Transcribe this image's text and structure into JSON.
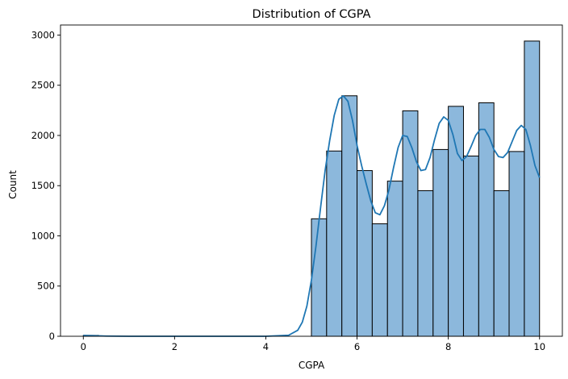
{
  "chart_data": {
    "type": "bar",
    "subtype": "histogram-with-kde",
    "title": "Distribution of CGPA",
    "xlabel": "CGPA",
    "ylabel": "Count",
    "xlim": [
      -0.5,
      10.5
    ],
    "ylim": [
      0,
      3100
    ],
    "xticks": [
      0,
      2,
      4,
      6,
      8,
      10
    ],
    "yticks": [
      0,
      500,
      1000,
      1500,
      2000,
      2500,
      3000
    ],
    "grid": false,
    "legend": "none",
    "bar_fill": "#8cb8dc",
    "bar_edge": "#000000",
    "kde_color": "#1f77b4",
    "bins": [
      {
        "x0": 0.0,
        "x1": 0.333,
        "count": 9
      },
      {
        "x0": 5.0,
        "x1": 5.333,
        "count": 1170
      },
      {
        "x0": 5.333,
        "x1": 5.667,
        "count": 1845
      },
      {
        "x0": 5.667,
        "x1": 6.0,
        "count": 2395
      },
      {
        "x0": 6.0,
        "x1": 6.333,
        "count": 1650
      },
      {
        "x0": 6.333,
        "x1": 6.667,
        "count": 1120
      },
      {
        "x0": 6.667,
        "x1": 7.0,
        "count": 1545
      },
      {
        "x0": 7.0,
        "x1": 7.333,
        "count": 2245
      },
      {
        "x0": 7.333,
        "x1": 7.667,
        "count": 1450
      },
      {
        "x0": 7.667,
        "x1": 8.0,
        "count": 1860
      },
      {
        "x0": 8.0,
        "x1": 8.333,
        "count": 2290
      },
      {
        "x0": 8.333,
        "x1": 8.667,
        "count": 1795
      },
      {
        "x0": 8.667,
        "x1": 9.0,
        "count": 2325
      },
      {
        "x0": 9.0,
        "x1": 9.333,
        "count": 1450
      },
      {
        "x0": 9.333,
        "x1": 9.667,
        "count": 1840
      },
      {
        "x0": 9.667,
        "x1": 10.0,
        "count": 2940
      }
    ],
    "kde": {
      "x": [
        0,
        0.2,
        0.5,
        1,
        2,
        3,
        4,
        4.5,
        4.7,
        4.8,
        4.9,
        5.0,
        5.1,
        5.2,
        5.3,
        5.4,
        5.5,
        5.6,
        5.7,
        5.8,
        5.9,
        6.0,
        6.1,
        6.2,
        6.3,
        6.4,
        6.5,
        6.6,
        6.7,
        6.8,
        6.9,
        7.0,
        7.1,
        7.2,
        7.3,
        7.4,
        7.5,
        7.6,
        7.7,
        7.8,
        7.9,
        8.0,
        8.1,
        8.2,
        8.3,
        8.4,
        8.5,
        8.6,
        8.7,
        8.8,
        8.9,
        9.0,
        9.1,
        9.2,
        9.3,
        9.4,
        9.5,
        9.6,
        9.7,
        9.8,
        9.9,
        10.0
      ],
      "y": [
        8,
        6,
        2,
        0,
        0,
        0,
        0,
        10,
        60,
        140,
        300,
        560,
        900,
        1280,
        1650,
        1950,
        2200,
        2360,
        2395,
        2340,
        2150,
        1900,
        1700,
        1520,
        1350,
        1230,
        1210,
        1300,
        1460,
        1680,
        1880,
        2000,
        1990,
        1880,
        1740,
        1650,
        1660,
        1780,
        1960,
        2120,
        2185,
        2150,
        2010,
        1820,
        1750,
        1790,
        1890,
        2000,
        2060,
        2060,
        1980,
        1860,
        1790,
        1780,
        1830,
        1940,
        2050,
        2100,
        2060,
        1900,
        1700,
        1580
      ]
    }
  }
}
